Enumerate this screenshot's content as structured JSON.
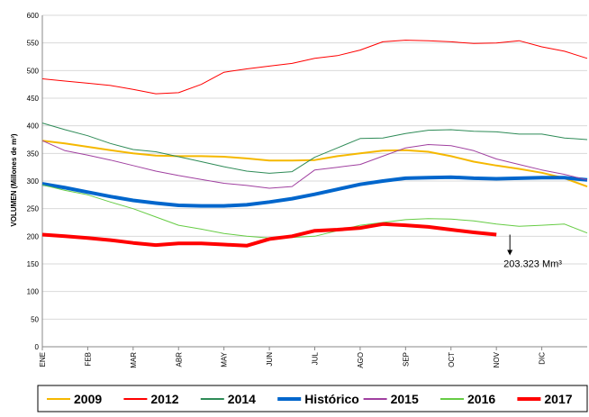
{
  "chart_data": {
    "type": "line",
    "y_label": "VOLUMEN (Millones de m³)",
    "categories": [
      "ENE",
      null,
      "FEB",
      null,
      "MAR",
      null,
      "ABR",
      null,
      "MAY",
      null,
      "JUN",
      null,
      "JUL",
      null,
      "AGO",
      null,
      "SEP",
      null,
      "OCT",
      null,
      "NOV",
      null,
      "DIC",
      null,
      null
    ],
    "ylim": [
      0,
      600
    ],
    "yticks": [
      0,
      50,
      100,
      150,
      200,
      250,
      300,
      350,
      400,
      450,
      500,
      550,
      600
    ],
    "grid": true,
    "legend": "bottom",
    "annotation": "203.323 Mm³",
    "series": [
      {
        "name": "2009",
        "color": "#f5b800",
        "line_width": 2,
        "values": [
          373,
          368,
          362,
          356,
          350,
          346,
          345,
          345,
          344,
          341,
          337,
          337,
          338,
          345,
          350,
          355,
          356,
          353,
          345,
          335,
          328,
          322,
          315,
          305,
          290
        ]
      },
      {
        "name": "2012",
        "color": "#ff0000",
        "line_width": 1,
        "values": [
          485,
          481,
          477,
          473,
          466,
          458,
          460,
          475,
          497,
          503,
          508,
          513,
          522,
          527,
          537,
          552,
          555,
          554,
          552,
          549,
          550,
          554,
          543,
          535,
          522
        ]
      },
      {
        "name": "2014",
        "color": "#2e8b57",
        "line_width": 1,
        "values": [
          405,
          393,
          382,
          368,
          357,
          353,
          344,
          335,
          326,
          318,
          314,
          317,
          343,
          360,
          377,
          378,
          386,
          392,
          393,
          390,
          389,
          385,
          385,
          378,
          375
        ]
      },
      {
        "name": "Histórico",
        "color": "#0066cc",
        "line_width": 4,
        "values": [
          295,
          288,
          280,
          272,
          265,
          260,
          256,
          255,
          255,
          257,
          262,
          268,
          276,
          285,
          294,
          300,
          305,
          306,
          307,
          305,
          304,
          305,
          306,
          306,
          302
        ]
      },
      {
        "name": "2015",
        "color": "#a040a0",
        "line_width": 1,
        "values": [
          373,
          355,
          347,
          338,
          328,
          318,
          310,
          303,
          296,
          292,
          287,
          290,
          320,
          325,
          330,
          345,
          360,
          366,
          364,
          355,
          340,
          330,
          320,
          312,
          302
        ]
      },
      {
        "name": "2016",
        "color": "#66cc44",
        "line_width": 1,
        "values": [
          293,
          283,
          275,
          262,
          250,
          235,
          220,
          213,
          205,
          200,
          197,
          198,
          200,
          210,
          220,
          225,
          230,
          232,
          231,
          228,
          222,
          218,
          220,
          222,
          206
        ]
      },
      {
        "name": "2017",
        "color": "#ff0000",
        "line_width": 4,
        "values": [
          203,
          200,
          197,
          193,
          188,
          184,
          187,
          187,
          185,
          183,
          195,
          200,
          210,
          212,
          215,
          222,
          220,
          217,
          212,
          207,
          203,
          null,
          null,
          null,
          null
        ]
      }
    ]
  }
}
